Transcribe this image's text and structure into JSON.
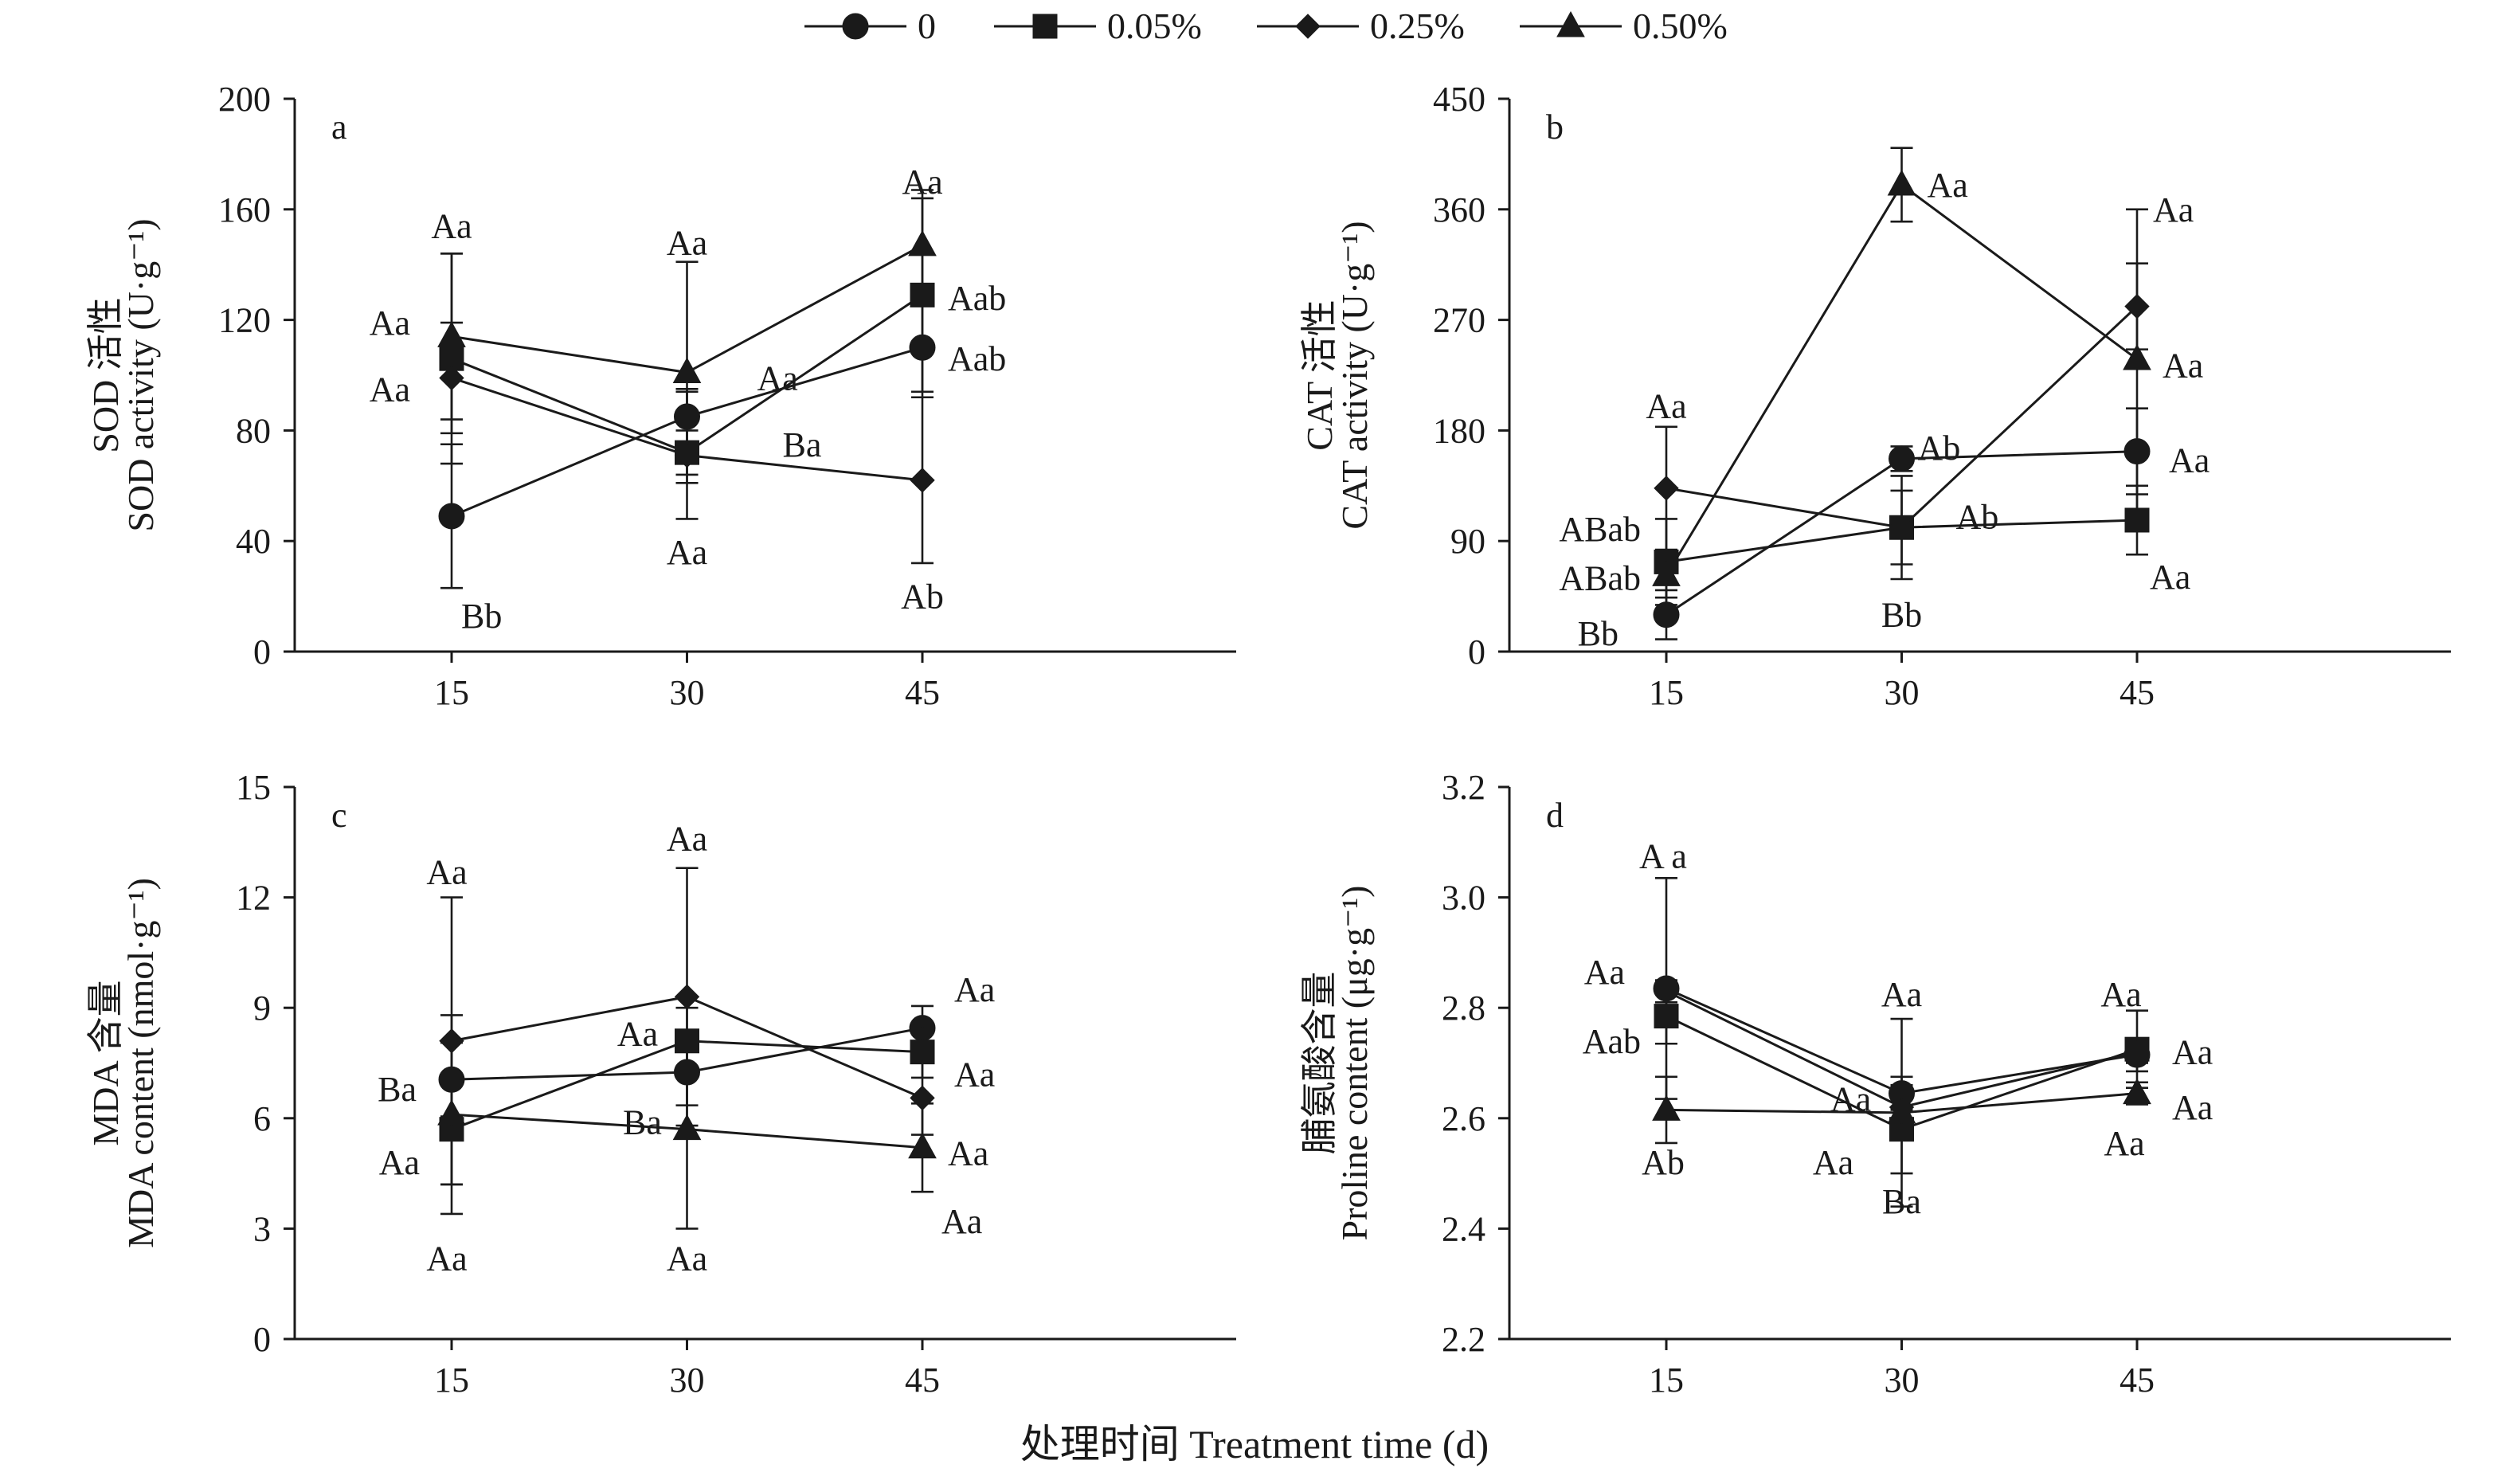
{
  "figure": {
    "xlabel": "处理时间 Treatment time (d)",
    "legend": {
      "placement": "top-center",
      "entries": [
        {
          "label": "0",
          "marker": "circle"
        },
        {
          "label": "0.05%",
          "marker": "square"
        },
        {
          "label": "0.25%",
          "marker": "diamond"
        },
        {
          "label": "0.50%",
          "marker": "triangle"
        }
      ]
    }
  },
  "chart_data": [
    {
      "type": "line",
      "panel_label": "a",
      "ylabel_cn": "SOD 活性",
      "ylabel_en": "SOD activity (U·g⁻¹)",
      "x": [
        15,
        30,
        45
      ],
      "xticks": [
        "15",
        "30",
        "45"
      ],
      "ylim": [
        0,
        200
      ],
      "yticks": [
        "0",
        "40",
        "80",
        "120",
        "160",
        "200"
      ],
      "ytick_values": [
        0,
        40,
        80,
        120,
        160,
        200
      ],
      "series": [
        {
          "name": "0",
          "marker": "circle",
          "values": [
            49,
            85,
            110
          ],
          "err": [
            26,
            10,
            18
          ]
        },
        {
          "name": "0.05%",
          "marker": "square",
          "values": [
            106,
            72,
            129
          ],
          "err": [
            38,
            8,
            35
          ]
        },
        {
          "name": "0.25%",
          "marker": "diamond",
          "values": [
            99,
            71,
            62
          ],
          "err": [
            20,
            23,
            30
          ]
        },
        {
          "name": "0.50%",
          "marker": "triangle",
          "values": [
            114,
            101,
            147
          ],
          "err": [
            30,
            40,
            20
          ]
        }
      ],
      "annotations": [
        {
          "text": "Aa",
          "x": 15,
          "y": 154,
          "dx": 0,
          "anchor": "middle"
        },
        {
          "text": "Aa",
          "x": 15,
          "y": 119,
          "dx": -52,
          "anchor": "end"
        },
        {
          "text": "Aa",
          "x": 15,
          "y": 95,
          "dx": -52,
          "anchor": "end"
        },
        {
          "text": "Bb",
          "x": 15,
          "y": 13,
          "dx": 12,
          "anchor": "start"
        },
        {
          "text": "Aa",
          "x": 30,
          "y": 148,
          "dx": 0,
          "anchor": "middle"
        },
        {
          "text": "Aa",
          "x": 30,
          "y": 99,
          "dx": 88,
          "anchor": "start"
        },
        {
          "text": "Ba",
          "x": 30,
          "y": 75,
          "dx": 120,
          "anchor": "start"
        },
        {
          "text": "Aa",
          "x": 30,
          "y": 36,
          "dx": 0,
          "anchor": "middle"
        },
        {
          "text": "Aa",
          "x": 45,
          "y": 170,
          "dx": 0,
          "anchor": "middle"
        },
        {
          "text": "Aab",
          "x": 45,
          "y": 128,
          "dx": 32,
          "anchor": "start"
        },
        {
          "text": "Aab",
          "x": 45,
          "y": 106,
          "dx": 32,
          "anchor": "start"
        },
        {
          "text": "Ab",
          "x": 45,
          "y": 20,
          "dx": 0,
          "anchor": "middle"
        }
      ]
    },
    {
      "type": "line",
      "panel_label": "b",
      "ylabel_cn": "CAT 活性",
      "ylabel_en": "CAT activity (U·g⁻¹)",
      "x": [
        15,
        30,
        45
      ],
      "xticks": [
        "15",
        "30",
        "45"
      ],
      "ylim": [
        0,
        450
      ],
      "yticks": [
        "0",
        "90",
        "180",
        "270",
        "360",
        "450"
      ],
      "ytick_values": [
        0,
        90,
        180,
        270,
        360,
        450
      ],
      "series": [
        {
          "name": "0",
          "marker": "circle",
          "values": [
            30,
            157,
            163
          ],
          "err": [
            20,
            10,
            35
          ]
        },
        {
          "name": "0.05%",
          "marker": "square",
          "values": [
            73,
            101,
            107
          ],
          "err": [
            35,
            42,
            28
          ]
        },
        {
          "name": "0.25%",
          "marker": "diamond",
          "values": [
            133,
            101,
            281
          ],
          "err": [
            50,
            30,
            35
          ]
        },
        {
          "name": "0.50%",
          "marker": "triangle",
          "values": [
            62,
            380,
            238
          ],
          "err": [
            18,
            30,
            122
          ]
        }
      ],
      "annotations": [
        {
          "text": "Aa",
          "x": 15,
          "y": 200,
          "dx": 0,
          "anchor": "middle"
        },
        {
          "text": "ABab",
          "x": 15,
          "y": 100,
          "dx": -32,
          "anchor": "end"
        },
        {
          "text": "ABab",
          "x": 15,
          "y": 60,
          "dx": -32,
          "anchor": "end"
        },
        {
          "text": "Bb",
          "x": 15,
          "y": 15,
          "dx": -60,
          "anchor": "end"
        },
        {
          "text": "Aa",
          "x": 30,
          "y": 380,
          "dx": 32,
          "anchor": "start"
        },
        {
          "text": "Ab",
          "x": 30,
          "y": 166,
          "dx": 20,
          "anchor": "start"
        },
        {
          "text": "Ab",
          "x": 30,
          "y": 110,
          "dx": 68,
          "anchor": "start"
        },
        {
          "text": "Bb",
          "x": 30,
          "y": 30,
          "dx": 0,
          "anchor": "middle"
        },
        {
          "text": "Aa",
          "x": 45,
          "y": 360,
          "dx": 20,
          "anchor": "start"
        },
        {
          "text": "Aa",
          "x": 45,
          "y": 233,
          "dx": 32,
          "anchor": "start"
        },
        {
          "text": "Aa",
          "x": 45,
          "y": 156,
          "dx": 40,
          "anchor": "start"
        },
        {
          "text": "Aa",
          "x": 45,
          "y": 61,
          "dx": 16,
          "anchor": "start"
        }
      ]
    },
    {
      "type": "line",
      "panel_label": "c",
      "ylabel_cn": "MDA 含量",
      "ylabel_en": "MDA content (nmol·g⁻¹)",
      "x": [
        15,
        30,
        45
      ],
      "xticks": [
        "15",
        "30",
        "45"
      ],
      "ylim": [
        0,
        15
      ],
      "yticks": [
        "0",
        "3",
        "6",
        "9",
        "12",
        "15"
      ],
      "ytick_values": [
        0,
        3,
        6,
        9,
        12,
        15
      ],
      "series": [
        {
          "name": "0",
          "marker": "circle",
          "values": [
            7.05,
            7.25,
            8.45
          ],
          "err": [
            1.0,
            0.9,
            0.6
          ]
        },
        {
          "name": "0.05%",
          "marker": "square",
          "values": [
            5.7,
            8.1,
            7.8
          ],
          "err": [
            1.5,
            0.9,
            0.7
          ]
        },
        {
          "name": "0.25%",
          "marker": "diamond",
          "values": [
            8.1,
            9.3,
            6.55
          ],
          "err": [
            3.9,
            3.5,
            1.0
          ]
        },
        {
          "name": "0.50%",
          "marker": "triangle",
          "values": [
            6.1,
            5.7,
            5.2
          ],
          "err": [
            2.7,
            2.7,
            1.2
          ]
        }
      ],
      "annotations": [
        {
          "text": "Aa",
          "x": 15,
          "y": 12.7,
          "dx": -6,
          "anchor": "middle"
        },
        {
          "text": "Ba",
          "x": 15,
          "y": 6.8,
          "dx": -44,
          "anchor": "end"
        },
        {
          "text": "Aa",
          "x": 15,
          "y": 4.8,
          "dx": -40,
          "anchor": "end"
        },
        {
          "text": "Aa",
          "x": 15,
          "y": 2.2,
          "dx": -6,
          "anchor": "middle"
        },
        {
          "text": "Aa",
          "x": 30,
          "y": 13.6,
          "dx": 0,
          "anchor": "middle"
        },
        {
          "text": "Aa",
          "x": 30,
          "y": 8.3,
          "dx": -62,
          "anchor": "middle"
        },
        {
          "text": "Ba",
          "x": 30,
          "y": 5.9,
          "dx": -56,
          "anchor": "middle"
        },
        {
          "text": "Aa",
          "x": 30,
          "y": 2.2,
          "dx": 0,
          "anchor": "middle"
        },
        {
          "text": "Aa",
          "x": 45,
          "y": 9.5,
          "dx": 40,
          "anchor": "start"
        },
        {
          "text": "Aa",
          "x": 45,
          "y": 7.2,
          "dx": 40,
          "anchor": "start"
        },
        {
          "text": "Aa",
          "x": 45,
          "y": 5.05,
          "dx": 32,
          "anchor": "start"
        },
        {
          "text": "Aa",
          "x": 45,
          "y": 3.2,
          "dx": 24,
          "anchor": "start"
        }
      ]
    },
    {
      "type": "line",
      "panel_label": "d",
      "ylabel_cn": "脯氨酸含量",
      "ylabel_en": "Proline content (μg·g⁻¹)",
      "x": [
        15,
        30,
        45
      ],
      "xticks": [
        "15",
        "30",
        "45"
      ],
      "ylim": [
        2.2,
        3.2
      ],
      "yticks": [
        "2.2",
        "2.4",
        "2.6",
        "2.8",
        "3.0",
        "3.2"
      ],
      "ytick_values": [
        2.2,
        2.4,
        2.6,
        2.8,
        3.0,
        3.2
      ],
      "series": [
        {
          "name": "0",
          "marker": "circle",
          "values": [
            2.835,
            2.645,
            2.715
          ],
          "err": [
            0.2,
            0.03,
            0.03
          ]
        },
        {
          "name": "0.05%",
          "marker": "square",
          "values": [
            2.785,
            2.58,
            2.725
          ],
          "err": [
            0.05,
            0.08,
            0.07
          ]
        },
        {
          "name": "0.25%",
          "marker": "diamond",
          "values": [
            2.83,
            2.62,
            2.72
          ],
          "err": [
            0.02,
            0.02,
            0.02
          ]
        },
        {
          "name": "0.50%",
          "marker": "triangle",
          "values": [
            2.615,
            2.61,
            2.645
          ],
          "err": [
            0.06,
            0.17,
            0.02
          ]
        }
      ],
      "annotations": [
        {
          "text": "A a",
          "x": 15,
          "y": 3.075,
          "dx": -4,
          "anchor": "middle"
        },
        {
          "text": "Aa",
          "x": 15,
          "y": 2.865,
          "dx": -52,
          "anchor": "end"
        },
        {
          "text": "Aab",
          "x": 15,
          "y": 2.74,
          "dx": -32,
          "anchor": "end"
        },
        {
          "text": "Ab",
          "x": 15,
          "y": 2.52,
          "dx": -4,
          "anchor": "middle"
        },
        {
          "text": "Aa",
          "x": 30,
          "y": 2.825,
          "dx": 0,
          "anchor": "middle"
        },
        {
          "text": "Aa",
          "x": 30,
          "y": 2.635,
          "dx": -64,
          "anchor": "middle"
        },
        {
          "text": "Aa",
          "x": 30,
          "y": 2.52,
          "dx": -86,
          "anchor": "middle"
        },
        {
          "text": "Ba",
          "x": 30,
          "y": 2.45,
          "dx": 0,
          "anchor": "middle"
        },
        {
          "text": "Aa",
          "x": 45,
          "y": 2.825,
          "dx": -20,
          "anchor": "middle"
        },
        {
          "text": "Aa",
          "x": 45,
          "y": 2.72,
          "dx": 44,
          "anchor": "start"
        },
        {
          "text": "Aa",
          "x": 45,
          "y": 2.62,
          "dx": 44,
          "anchor": "start"
        },
        {
          "text": "Aa",
          "x": 45,
          "y": 2.555,
          "dx": -16,
          "anchor": "middle"
        }
      ]
    }
  ]
}
